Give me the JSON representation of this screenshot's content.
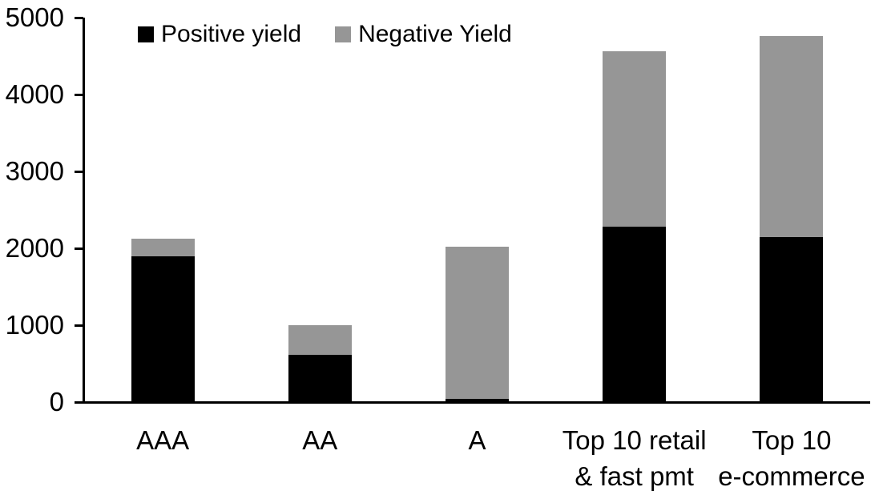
{
  "chart_data": {
    "type": "bar",
    "stacked": true,
    "title": "",
    "xlabel": "",
    "ylabel": "",
    "categories": [
      "AAA",
      "AA",
      "A",
      "Top 10 retail\n& fast pmt",
      "Top 10\ne-commerce"
    ],
    "series": [
      {
        "name": "Positive yield",
        "color": "#000000",
        "values": [
          1900,
          610,
          40,
          2280,
          2150
        ]
      },
      {
        "name": "Negative Yield",
        "color": "#969696",
        "values": [
          230,
          390,
          1985,
          2280,
          2610
        ]
      }
    ],
    "ylim": [
      0,
      5000
    ],
    "yticks": [
      0,
      1000,
      2000,
      3000,
      4000,
      5000
    ],
    "grid": false,
    "legend_position": "top"
  },
  "colors": {
    "background": "#ffffff",
    "axis": "#000000",
    "text": "#000000",
    "positive_series": "#000000",
    "negative_series": "#969696"
  }
}
